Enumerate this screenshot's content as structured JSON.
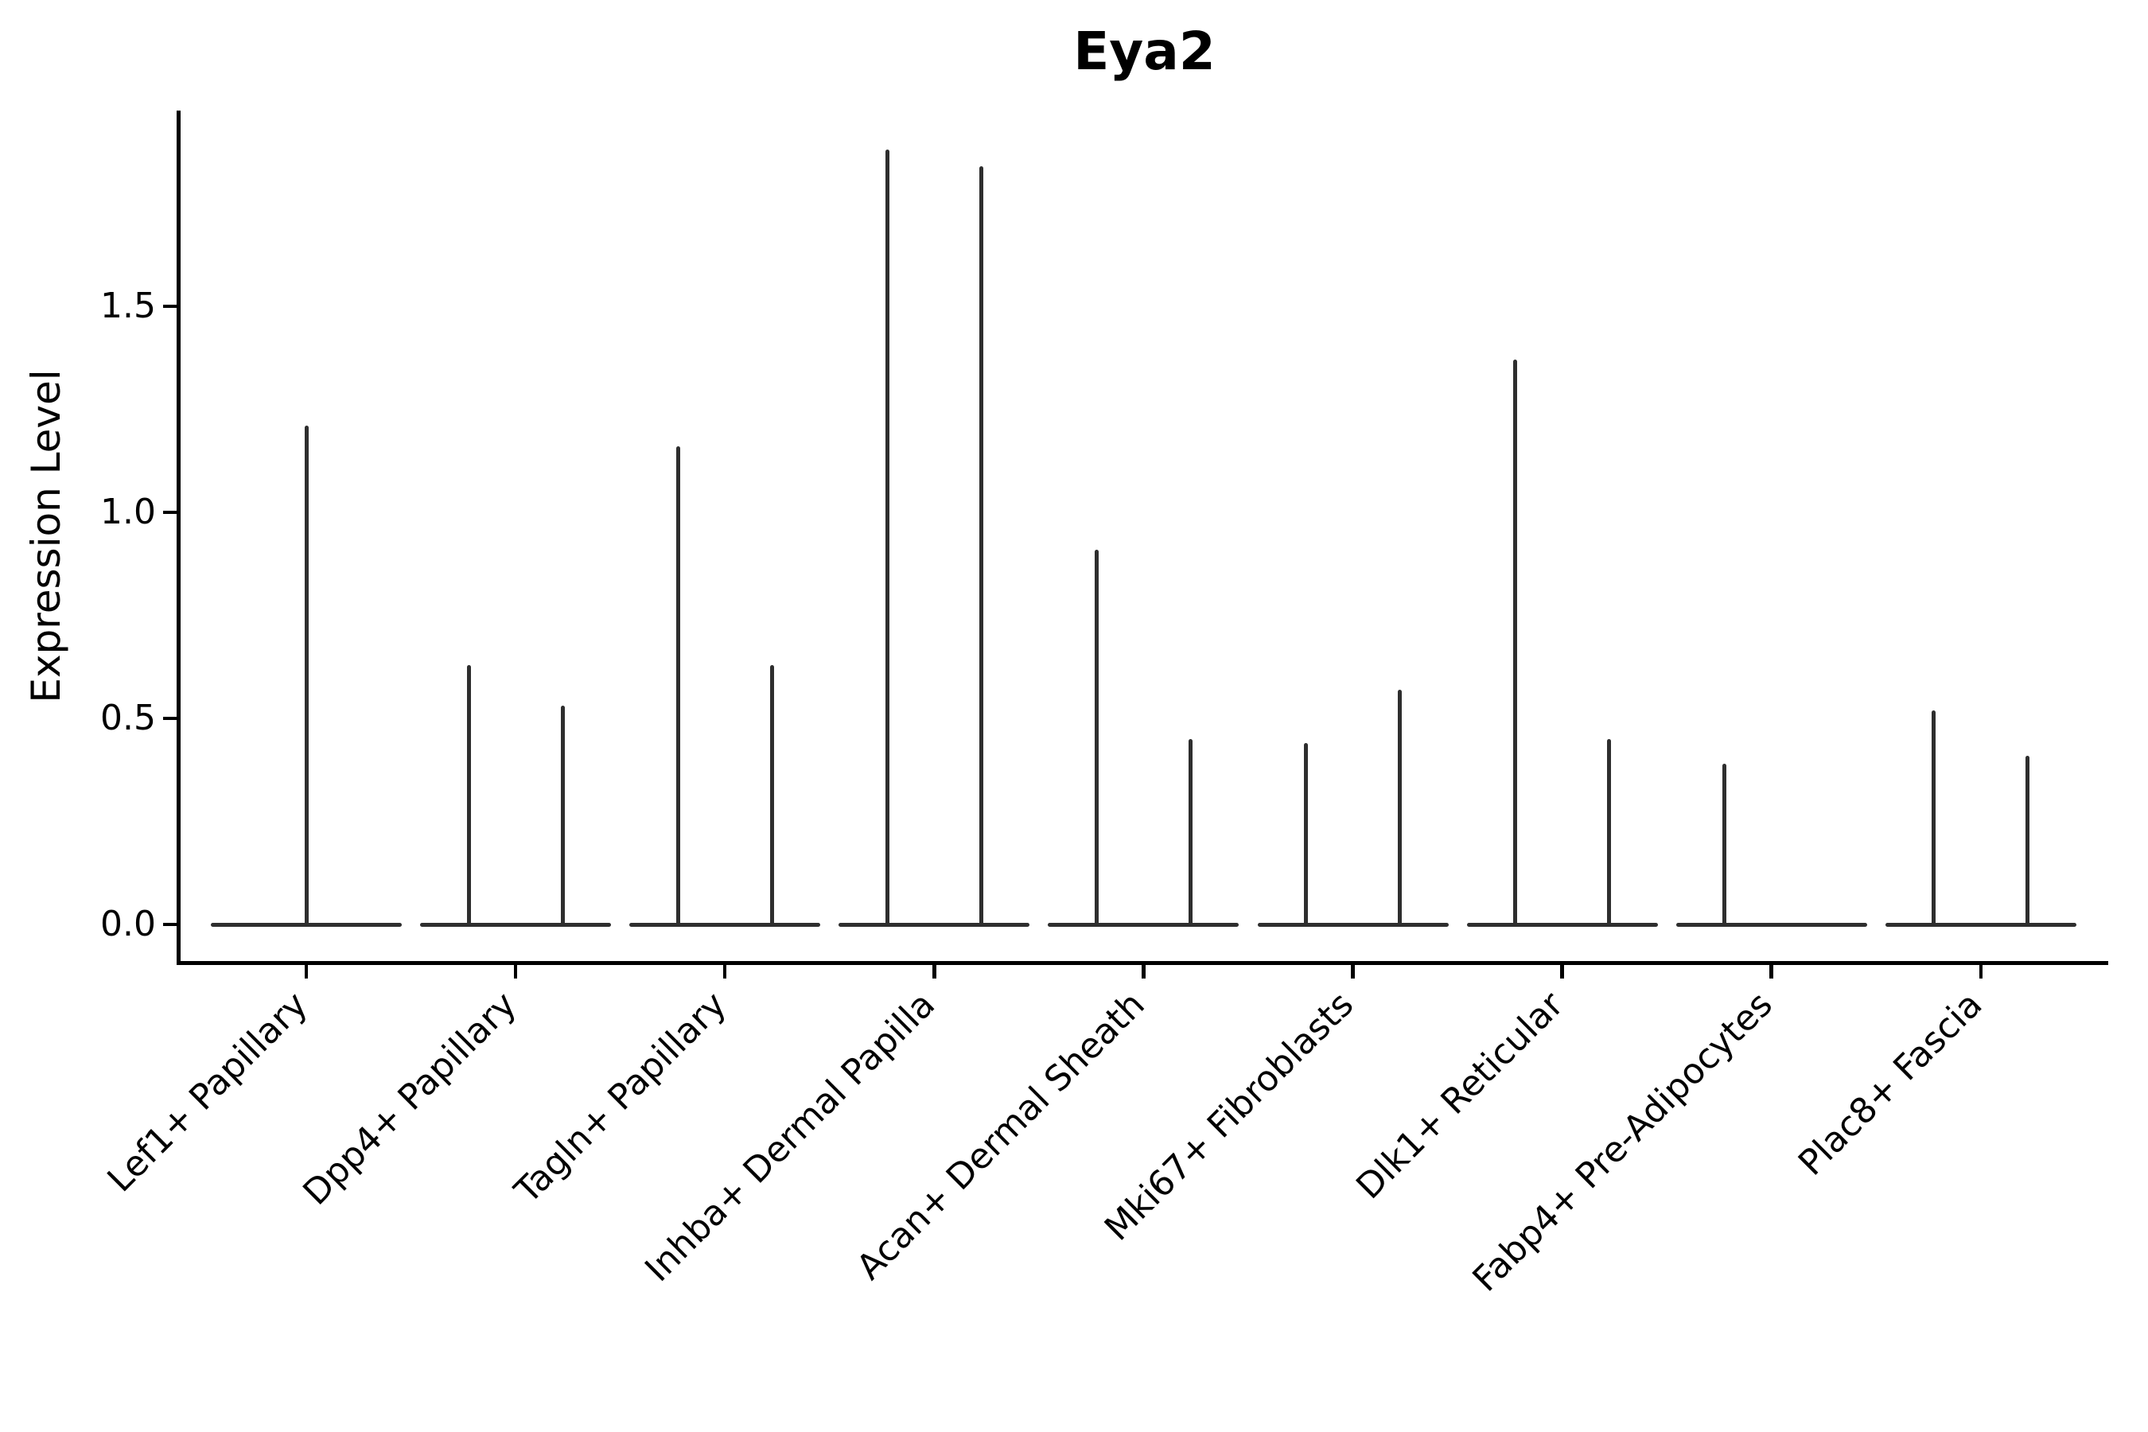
{
  "chart_data": {
    "type": "violin",
    "title": "Eya2",
    "xlabel": "",
    "ylabel": "Expression Level",
    "ylim": [
      0,
      1.97
    ],
    "yticks": [
      0,
      0.5,
      1.0,
      1.5
    ],
    "ytick_labels": [
      "0.0",
      "0.5",
      "1.0",
      "1.5"
    ],
    "grid": false,
    "legend": "none",
    "style_note": "collapsed violins: flat dark-gray baseline at y=0 spanning each category, with thin vertical density spikes; two sub-violins (left/right) per category except a single centered spike for Lef1+ Papillary and a left-only spike for Fabp4+ Pre-Adipocytes",
    "categories": [
      {
        "label": "Lef1+ Papillary",
        "spikes": [
          {
            "pos": "center",
            "max": 1.21
          }
        ]
      },
      {
        "label": "Dpp4+ Papillary",
        "spikes": [
          {
            "pos": "left",
            "max": 0.63
          },
          {
            "pos": "right",
            "max": 0.53
          }
        ]
      },
      {
        "label": "Tagln+ Papillary",
        "spikes": [
          {
            "pos": "left",
            "max": 1.16
          },
          {
            "pos": "right",
            "max": 0.63
          }
        ]
      },
      {
        "label": "Inhba+ Dermal Papilla",
        "spikes": [
          {
            "pos": "left",
            "max": 1.88
          },
          {
            "pos": "right",
            "max": 1.84
          }
        ]
      },
      {
        "label": "Acan+ Dermal Sheath",
        "spikes": [
          {
            "pos": "left",
            "max": 0.91
          },
          {
            "pos": "right",
            "max": 0.45
          }
        ]
      },
      {
        "label": "Mki67+ Fibroblasts",
        "spikes": [
          {
            "pos": "left",
            "max": 0.44
          },
          {
            "pos": "right",
            "max": 0.57
          }
        ]
      },
      {
        "label": "Dlk1+ Reticular",
        "spikes": [
          {
            "pos": "left",
            "max": 1.37
          },
          {
            "pos": "right",
            "max": 0.45
          }
        ]
      },
      {
        "label": "Fabp4+ Pre-Adipocytes",
        "spikes": [
          {
            "pos": "left",
            "max": 0.39
          }
        ]
      },
      {
        "label": "Plac8+ Fascia",
        "spikes": [
          {
            "pos": "left",
            "max": 0.52
          },
          {
            "pos": "right",
            "max": 0.41
          }
        ]
      }
    ],
    "colors": {
      "violin": "#2e2e2e",
      "axis": "#000000",
      "background": "#ffffff"
    }
  }
}
